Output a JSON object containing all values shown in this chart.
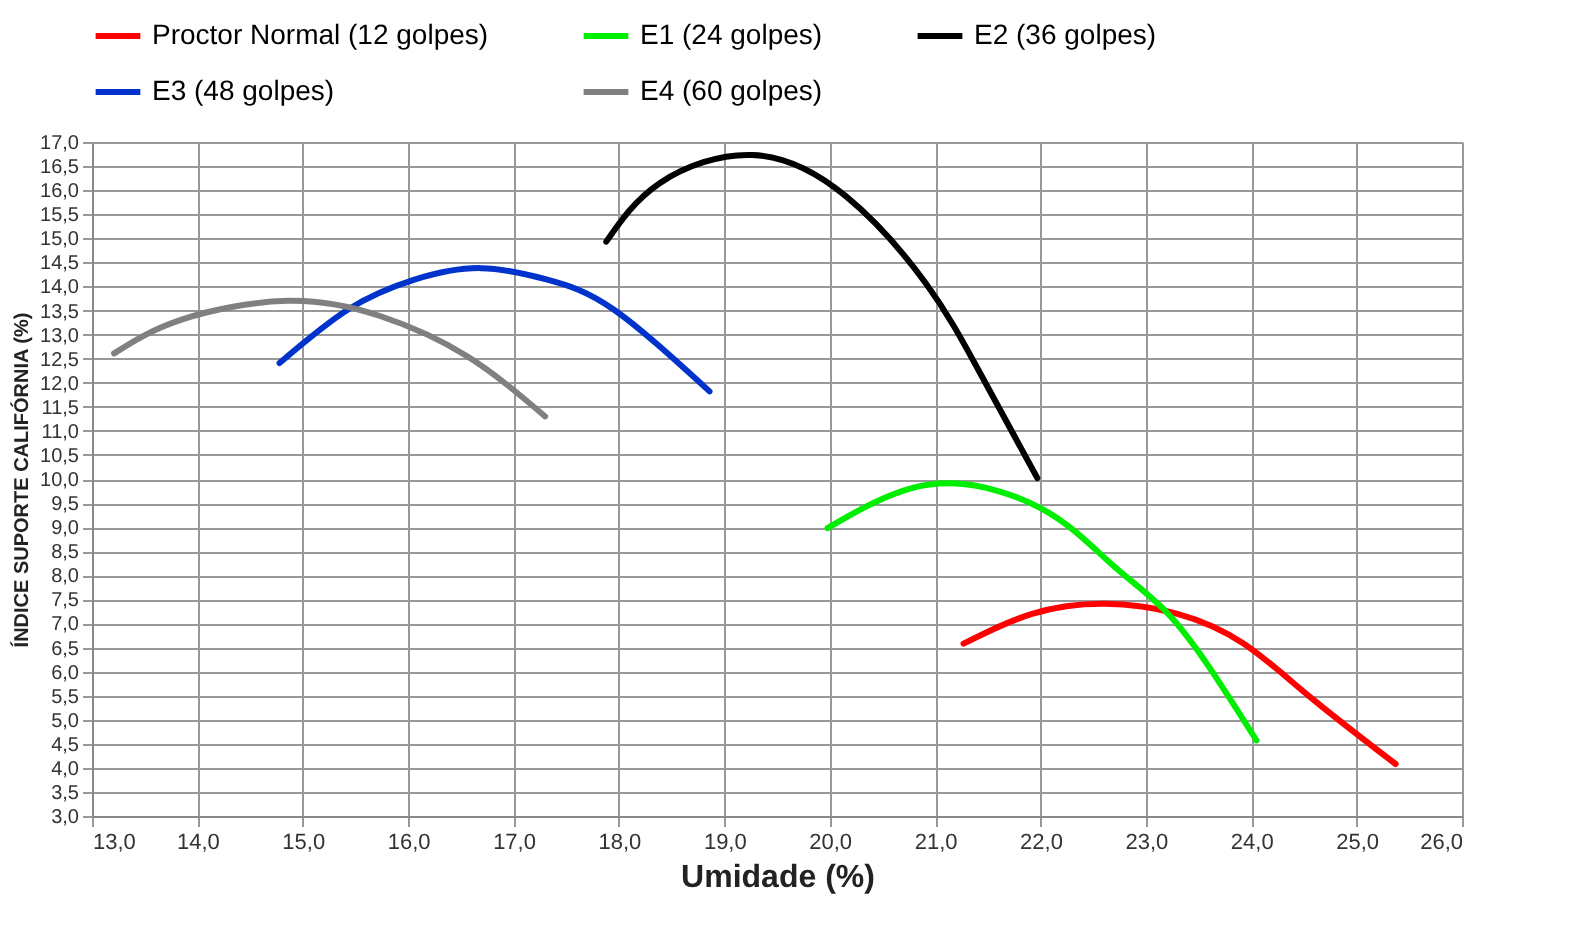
{
  "chart_data": {
    "type": "line",
    "xlabel": "Umidade (%)",
    "ylabel": "ÍNDICE SUPORTE CALIFÓRNIA (%)",
    "xlim": [
      13,
      26
    ],
    "ylim": [
      3,
      17
    ],
    "xticks": [
      {
        "value": 13,
        "label": "13,0"
      },
      {
        "value": 14,
        "label": "14,0"
      },
      {
        "value": 15,
        "label": "15,0"
      },
      {
        "value": 16,
        "label": "16,0"
      },
      {
        "value": 17,
        "label": "17,0"
      },
      {
        "value": 18,
        "label": "18,0"
      },
      {
        "value": 19,
        "label": "19,0"
      },
      {
        "value": 20,
        "label": "20,0"
      },
      {
        "value": 21,
        "label": "21,0"
      },
      {
        "value": 22,
        "label": "22,0"
      },
      {
        "value": 23,
        "label": "23,0"
      },
      {
        "value": 24,
        "label": "24,0"
      },
      {
        "value": 25,
        "label": "25,0"
      },
      {
        "value": 26,
        "label": "26,0"
      }
    ],
    "yticks": [
      {
        "value": 3,
        "label": "3,0"
      },
      {
        "value": 3.5,
        "label": "3,5"
      },
      {
        "value": 4,
        "label": "4,0"
      },
      {
        "value": 4.5,
        "label": "4,5"
      },
      {
        "value": 5,
        "label": "5,0"
      },
      {
        "value": 5.5,
        "label": "5,5"
      },
      {
        "value": 6,
        "label": "6,0"
      },
      {
        "value": 6.5,
        "label": "6,5"
      },
      {
        "value": 7,
        "label": "7,0"
      },
      {
        "value": 7.5,
        "label": "7,5"
      },
      {
        "value": 8,
        "label": "8,0"
      },
      {
        "value": 8.5,
        "label": "8,5"
      },
      {
        "value": 9,
        "label": "9,0"
      },
      {
        "value": 9.5,
        "label": "9,5"
      },
      {
        "value": 10,
        "label": "10,0"
      },
      {
        "value": 10.5,
        "label": "10,5"
      },
      {
        "value": 11,
        "label": "11,0"
      },
      {
        "value": 11.5,
        "label": "11,5"
      },
      {
        "value": 12,
        "label": "12,0"
      },
      {
        "value": 12.5,
        "label": "12,5"
      },
      {
        "value": 13,
        "label": "13,0"
      },
      {
        "value": 13.5,
        "label": "13,5"
      },
      {
        "value": 14,
        "label": "14,0"
      },
      {
        "value": 14.5,
        "label": "14,5"
      },
      {
        "value": 15,
        "label": "15,0"
      },
      {
        "value": 15.5,
        "label": "15,5"
      },
      {
        "value": 16,
        "label": "16,0"
      },
      {
        "value": 16.5,
        "label": "16,5"
      },
      {
        "value": 17,
        "label": "17,0"
      }
    ],
    "grid": true,
    "legend": "top",
    "marker": "none",
    "line_style": "solid",
    "series": [
      {
        "name": "Proctor Normal (12 golpes)",
        "color": "#ff0000",
        "x": [
          21.27,
          21.92,
          22.61,
          23.3,
          23.93,
          24.56,
          25.37
        ],
        "values": [
          6.58,
          7.2,
          7.41,
          7.2,
          6.58,
          5.47,
          4.08
        ]
      },
      {
        "name": "E1 (24 golpes)",
        "color": "#00ee00",
        "x": [
          19.98,
          20.47,
          21.16,
          22.04,
          22.67,
          23.18,
          23.62,
          24.05
        ],
        "values": [
          8.98,
          9.56,
          9.91,
          9.35,
          8.24,
          7.27,
          6.03,
          4.57
        ]
      },
      {
        "name": "E2 (36 golpes)",
        "color": "#000000",
        "x": [
          17.88,
          18.39,
          19.27,
          20.15,
          20.91,
          21.41,
          21.97
        ],
        "values": [
          14.93,
          16.15,
          16.73,
          15.88,
          14.07,
          12.27,
          10.02
        ]
      },
      {
        "name": "E3 (48 golpes)",
        "color": "#0033cc",
        "x": [
          14.78,
          15.43,
          16.06,
          16.69,
          17.32,
          17.95,
          18.86
        ],
        "values": [
          12.41,
          13.52,
          14.14,
          14.38,
          14.14,
          13.52,
          11.82
        ]
      },
      {
        "name": "E4 (60 golpes)",
        "color": "#808080",
        "x": [
          13.21,
          13.85,
          14.86,
          15.74,
          16.56,
          17.3
        ],
        "values": [
          12.61,
          13.31,
          13.7,
          13.38,
          12.55,
          11.3
        ]
      }
    ]
  }
}
